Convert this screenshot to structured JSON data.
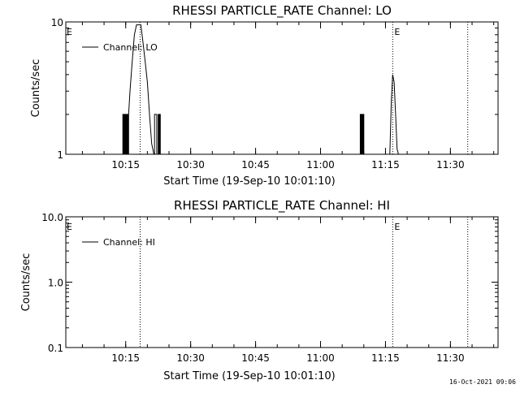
{
  "chart_data": [
    {
      "type": "line",
      "title": "RHESSI PARTICLE_RATE Channel: LO",
      "xlabel": "Start Time (19-Sep-10 10:01:10)",
      "ylabel": "Counts/sec",
      "yscale": "log",
      "ylim": [
        1,
        10
      ],
      "y_ticks": [
        1,
        10
      ],
      "y_tick_labels": [
        "1",
        "10"
      ],
      "xlim": [
        "10:01:10",
        "11:41:00"
      ],
      "x_ticks": [
        "10:15",
        "10:30",
        "10:45",
        "11:00",
        "11:15",
        "11:30"
      ],
      "legend": {
        "location": "top-left",
        "entries": [
          "Channel: LO"
        ]
      },
      "vlines": [
        {
          "time": "10:18:20",
          "label": "",
          "style": "dotted"
        },
        {
          "time": "11:16:40",
          "label": "E",
          "style": "dotted"
        },
        {
          "time": "11:34:00",
          "label": "",
          "style": "dotted"
        }
      ],
      "corner_marker": "E",
      "series": [
        {
          "name": "Channel: LO",
          "x": [
            "10:14:20",
            "10:14:20",
            "10:14:30",
            "10:14:30",
            "10:14:40",
            "10:14:40",
            "10:14:50",
            "10:14:50",
            "10:15:00",
            "10:15:00",
            "10:15:10",
            "10:15:10",
            "10:15:20",
            "10:15:20",
            "10:15:30",
            "10:15:30",
            "10:15:40",
            "10:15:40",
            "10:16:00",
            "10:16:30",
            "10:17:00",
            "10:17:30",
            "10:18:00",
            "10:18:30",
            "10:19:00",
            "10:19:30",
            "10:20:00",
            "10:20:30",
            "10:21:00",
            "10:21:30",
            "10:21:40",
            "10:21:40",
            "10:22:10",
            "10:22:10",
            "10:22:30",
            "10:22:30",
            "10:22:40",
            "10:22:40",
            "10:22:50",
            "10:22:50",
            "10:23:00",
            "10:23:00",
            "11:09:10",
            "11:09:10",
            "11:09:20",
            "11:09:20",
            "11:09:30",
            "11:09:30",
            "11:09:40",
            "11:09:40",
            "11:09:50",
            "11:09:50",
            "11:10:00",
            "11:10:00",
            "11:16:00",
            "11:16:20",
            "11:16:40",
            "11:17:00",
            "11:17:20",
            "11:17:40",
            "11:18:00"
          ],
          "y": [
            1,
            2,
            2,
            1,
            1,
            2,
            2,
            1,
            1,
            2,
            2,
            1,
            1,
            2,
            2,
            1,
            1,
            2,
            3,
            5,
            8,
            9.5,
            9.5,
            9.5,
            7,
            5,
            3.5,
            2,
            1.2,
            1,
            1,
            2,
            2,
            1,
            1,
            2,
            2,
            1,
            1,
            2,
            2,
            1,
            1,
            2,
            2,
            1,
            1,
            2,
            2,
            1,
            1,
            2,
            2,
            1,
            1,
            2.5,
            4,
            3.5,
            2,
            1.1,
            1
          ]
        }
      ]
    },
    {
      "type": "line",
      "title": "RHESSI PARTICLE_RATE Channel: HI",
      "xlabel": "Start Time (19-Sep-10 10:01:10)",
      "ylabel": "Counts/sec",
      "yscale": "log",
      "ylim": [
        0.1,
        10
      ],
      "y_ticks": [
        0.1,
        1,
        10
      ],
      "y_tick_labels": [
        "0.1",
        "1.0",
        "10.0"
      ],
      "xlim": [
        "10:01:10",
        "11:41:00"
      ],
      "x_ticks": [
        "10:15",
        "10:30",
        "10:45",
        "11:00",
        "11:15",
        "11:30"
      ],
      "legend": {
        "location": "top-left",
        "entries": [
          "Channel: HI"
        ]
      },
      "vlines": [
        {
          "time": "10:18:20",
          "label": "",
          "style": "dotted"
        },
        {
          "time": "11:16:40",
          "label": "E",
          "style": "dotted"
        },
        {
          "time": "11:34:00",
          "label": "",
          "style": "dotted"
        }
      ],
      "corner_marker": "E",
      "series": [
        {
          "name": "Channel: HI",
          "x": [],
          "y": []
        }
      ]
    }
  ],
  "timestamp": "16-Oct-2021 09:06"
}
